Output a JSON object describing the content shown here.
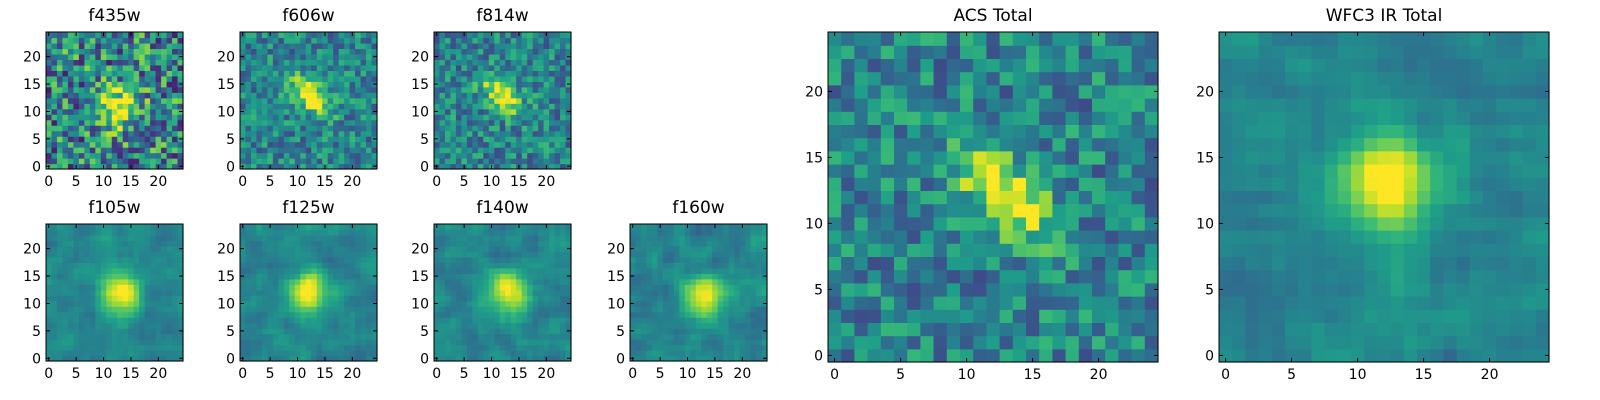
{
  "colormap": "viridis",
  "chart_data": [
    {
      "type": "heatmap",
      "title": "f435w",
      "x_ticks": [
        0,
        5,
        10,
        15,
        20
      ],
      "y_ticks": [
        0,
        5,
        10,
        15,
        20
      ],
      "xlim": [
        -0.5,
        24.5
      ],
      "ylim": [
        -0.5,
        24.5
      ],
      "source_center": [
        13,
        11
      ],
      "source_shape": "compact, faint",
      "noise": "high"
    },
    {
      "type": "heatmap",
      "title": "f606w",
      "x_ticks": [
        0,
        5,
        10,
        15,
        20
      ],
      "y_ticks": [
        0,
        5,
        10,
        15,
        20
      ],
      "xlim": [
        -0.5,
        24.5
      ],
      "ylim": [
        -0.5,
        24.5
      ],
      "source_center": [
        12,
        13
      ],
      "source_shape": "elongated diagonal",
      "noise": "medium"
    },
    {
      "type": "heatmap",
      "title": "f814w",
      "x_ticks": [
        0,
        5,
        10,
        15,
        20
      ],
      "y_ticks": [
        0,
        5,
        10,
        15,
        20
      ],
      "xlim": [
        -0.5,
        24.5
      ],
      "ylim": [
        -0.5,
        24.5
      ],
      "source_center": [
        12,
        13
      ],
      "source_shape": "elongated diagonal",
      "noise": "medium"
    },
    {
      "type": "heatmap",
      "title": "f105w",
      "x_ticks": [
        0,
        5,
        10,
        15,
        20
      ],
      "y_ticks": [
        0,
        5,
        10,
        15,
        20
      ],
      "xlim": [
        -0.5,
        24.5
      ],
      "ylim": [
        -0.5,
        24.5
      ],
      "source_center": [
        13,
        12
      ],
      "source_shape": "smooth extended",
      "noise": "low"
    },
    {
      "type": "heatmap",
      "title": "f125w",
      "x_ticks": [
        0,
        5,
        10,
        15,
        20
      ],
      "y_ticks": [
        0,
        5,
        10,
        15,
        20
      ],
      "xlim": [
        -0.5,
        24.5
      ],
      "ylim": [
        -0.5,
        24.5
      ],
      "source_center": [
        12,
        12
      ],
      "source_shape": "smooth extended",
      "noise": "low"
    },
    {
      "type": "heatmap",
      "title": "f140w",
      "x_ticks": [
        0,
        5,
        10,
        15,
        20
      ],
      "y_ticks": [
        0,
        5,
        10,
        15,
        20
      ],
      "xlim": [
        -0.5,
        24.5
      ],
      "ylim": [
        -0.5,
        24.5
      ],
      "source_center": [
        13,
        12
      ],
      "source_shape": "smooth extended",
      "noise": "low"
    },
    {
      "type": "heatmap",
      "title": "f160w",
      "x_ticks": [
        0,
        5,
        10,
        15,
        20
      ],
      "y_ticks": [
        0,
        5,
        10,
        15,
        20
      ],
      "xlim": [
        -0.5,
        24.5
      ],
      "ylim": [
        -0.5,
        24.5
      ],
      "source_center": [
        13,
        11
      ],
      "source_shape": "smooth extended",
      "noise": "low"
    },
    {
      "type": "heatmap",
      "title": "ACS Total",
      "x_ticks": [
        0,
        5,
        10,
        15,
        20
      ],
      "y_ticks": [
        0,
        5,
        10,
        15,
        20
      ],
      "xlim": [
        -0.5,
        24.5
      ],
      "ylim": [
        -0.5,
        24.5
      ],
      "source_center": [
        13,
        12
      ],
      "source_shape": "elongated diagonal",
      "noise": "medium"
    },
    {
      "type": "heatmap",
      "title": "WFC3 IR Total",
      "x_ticks": [
        0,
        5,
        10,
        15,
        20
      ],
      "y_ticks": [
        0,
        5,
        10,
        15,
        20
      ],
      "xlim": [
        -0.5,
        24.5
      ],
      "ylim": [
        -0.5,
        24.5
      ],
      "source_center": [
        12,
        13
      ],
      "source_shape": "smooth extended",
      "noise": "low"
    }
  ]
}
